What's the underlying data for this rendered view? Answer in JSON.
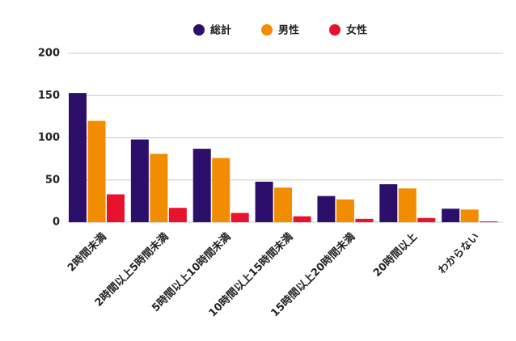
{
  "chart_data": {
    "type": "bar",
    "categories": [
      "2時間未満",
      "2時間以上5時間未満",
      "5時間以上10時間未満",
      "10時間以上15時間未満",
      "15時間以上20時間未満",
      "20時間以上",
      "わからない"
    ],
    "series": [
      {
        "name": "総計",
        "color": "#2b0f6b",
        "values": [
          153,
          98,
          87,
          48,
          31,
          45,
          16
        ]
      },
      {
        "name": "男性",
        "color": "#f28c00",
        "values": [
          120,
          81,
          76,
          41,
          27,
          40,
          15
        ]
      },
      {
        "name": "女性",
        "color": "#e8122d",
        "values": [
          33,
          17,
          11,
          7,
          4,
          5,
          1
        ]
      }
    ],
    "ylim": [
      0,
      200
    ],
    "yticks": [
      0,
      50,
      100,
      150,
      200
    ],
    "grid": true,
    "legend": "top"
  }
}
